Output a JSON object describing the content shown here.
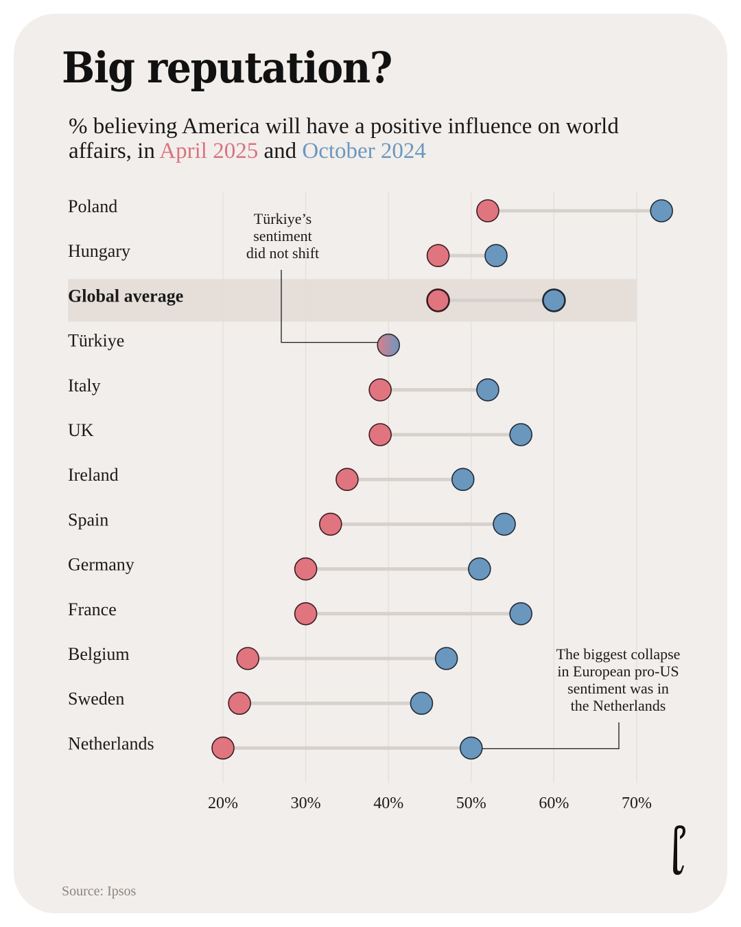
{
  "header": {
    "title": "Big reputation?",
    "subtitle_prefix": "% believing America will have a positive influence on world affairs, in ",
    "subtitle_april": "April 2025",
    "subtitle_and": " and ",
    "subtitle_october": "October 2024"
  },
  "colors": {
    "april": "#e07580",
    "october": "#6a97bd",
    "april_text": "#d9737d",
    "october_text": "#6b98be",
    "highlight_band": "#e6dfd9",
    "connector": "#d6d1cc",
    "grid": "#e2ddd8"
  },
  "chart_data": {
    "type": "dumbbell",
    "title": "Big reputation?",
    "subtitle": "% believing America will have a positive influence on world affairs, in April 2025 and October 2024",
    "xlabel": "",
    "ylabel": "",
    "xlim": [
      20,
      70
    ],
    "x_ticks": [
      20,
      30,
      40,
      50,
      60,
      70
    ],
    "x_tick_labels": [
      "20%",
      "30%",
      "40%",
      "50%",
      "60%",
      "70%"
    ],
    "grid": true,
    "categories": [
      "Poland",
      "Hungary",
      "Global average",
      "Türkiye",
      "Italy",
      "UK",
      "Ireland",
      "Spain",
      "Germany",
      "France",
      "Belgium",
      "Sweden",
      "Netherlands"
    ],
    "highlighted_category": "Global average",
    "series": [
      {
        "name": "April 2025",
        "values": [
          52,
          46,
          46,
          40,
          39,
          39,
          35,
          33,
          30,
          30,
          23,
          22,
          20
        ]
      },
      {
        "name": "October 2024",
        "values": [
          73,
          53,
          60,
          40,
          52,
          56,
          49,
          54,
          51,
          56,
          47,
          44,
          50
        ]
      }
    ],
    "annotations": [
      {
        "target": "Türkiye",
        "lines": [
          "Türkiye’s",
          "sentiment",
          "did not shift"
        ]
      },
      {
        "target": "Netherlands",
        "lines": [
          "The biggest collapse",
          "in European pro-US",
          "sentiment was in",
          "the Netherlands"
        ]
      }
    ]
  },
  "footer": {
    "source": "Source: Ipsos",
    "logo_icon": "publisher-logo-icon"
  }
}
